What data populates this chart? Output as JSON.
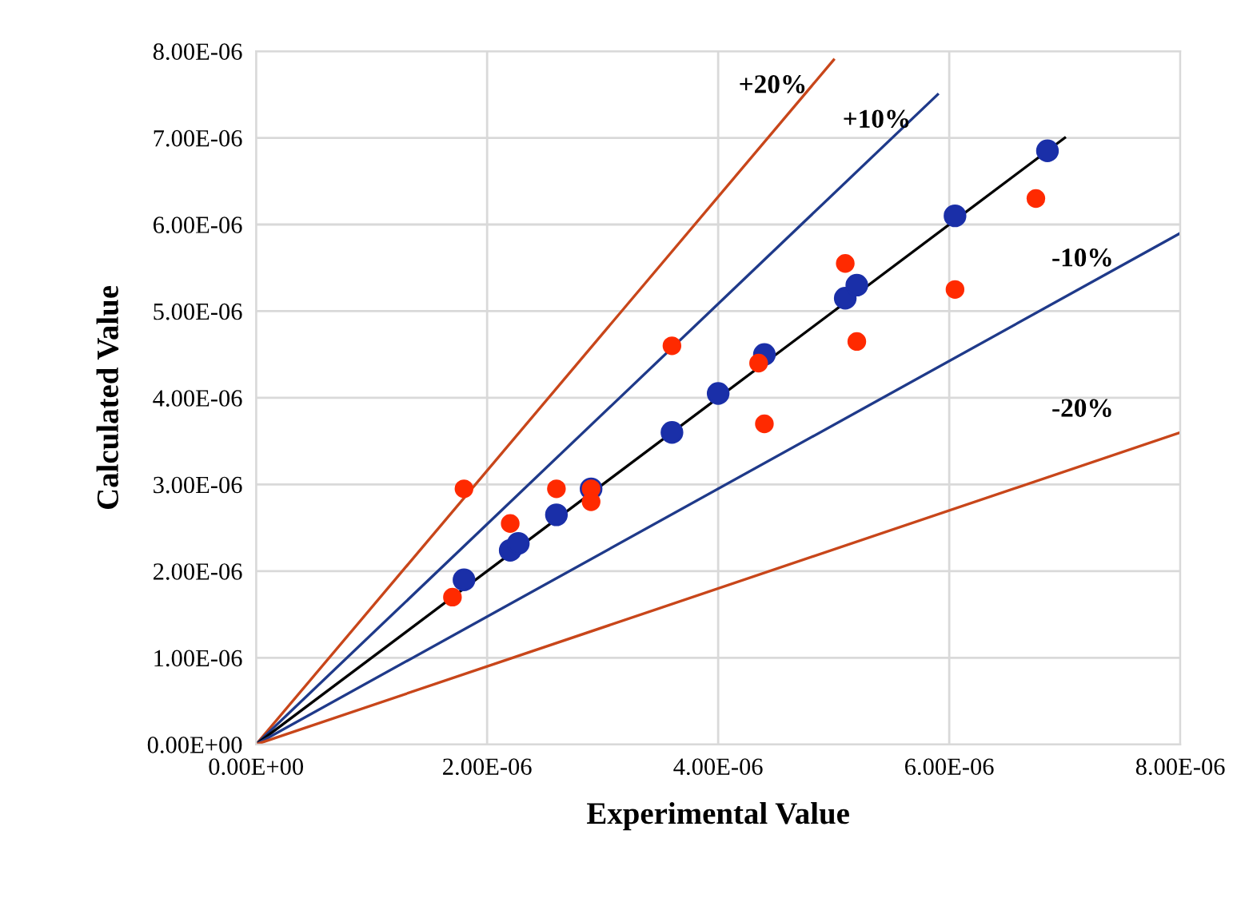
{
  "chart_data": {
    "type": "scatter",
    "xlabel": "Experimental Value",
    "ylabel": "Calculated Value",
    "xlim": [
      0,
      8e-06
    ],
    "ylim": [
      0,
      8e-06
    ],
    "xticks": [
      {
        "value": 0,
        "label": "0.00E+00"
      },
      {
        "value": 2e-06,
        "label": "2.00E-06"
      },
      {
        "value": 4e-06,
        "label": "4.00E-06"
      },
      {
        "value": 6e-06,
        "label": "6.00E-06"
      },
      {
        "value": 8e-06,
        "label": "8.00E-06"
      }
    ],
    "yticks": [
      {
        "value": 0,
        "label": "0.00E+00"
      },
      {
        "value": 1e-06,
        "label": "1.00E-06"
      },
      {
        "value": 2e-06,
        "label": "2.00E-06"
      },
      {
        "value": 3e-06,
        "label": "3.00E-06"
      },
      {
        "value": 4e-06,
        "label": "4.00E-06"
      },
      {
        "value": 5e-06,
        "label": "5.00E-06"
      },
      {
        "value": 6e-06,
        "label": "6.00E-06"
      },
      {
        "value": 7e-06,
        "label": "7.00E-06"
      },
      {
        "value": 8e-06,
        "label": "8.00E-06"
      }
    ],
    "grid": true,
    "marker": "circle",
    "series": [
      {
        "type": "line",
        "name": "+20%",
        "marker": "none",
        "color": "#c8461a",
        "x": [
          0,
          5e-06
        ],
        "values": [
          0,
          7.9e-06
        ]
      },
      {
        "type": "line",
        "name": "+10%",
        "marker": "none",
        "color": "#1f3a8a",
        "x": [
          0,
          5.9e-06
        ],
        "values": [
          0,
          7.5e-06
        ]
      },
      {
        "type": "line",
        "marker": "none",
        "color": "#000000",
        "x": [
          0,
          7e-06
        ],
        "values": [
          0,
          7e-06
        ]
      },
      {
        "type": "line",
        "name": "-10%",
        "marker": "none",
        "color": "#1f3a8a",
        "x": [
          0,
          8e-06
        ],
        "values": [
          0,
          5.9e-06
        ]
      },
      {
        "type": "line",
        "name": "-20%",
        "marker": "none",
        "color": "#c8461a",
        "x": [
          0,
          8e-06
        ],
        "values": [
          0,
          3.6e-06
        ]
      },
      {
        "color": "#ff2a00",
        "x": [
          1.7e-06,
          1.8e-06,
          2.2e-06,
          2.6e-06,
          2.9e-06,
          2.9e-06,
          3.6e-06,
          4.35e-06,
          4.4e-06,
          5.1e-06,
          5.2e-06,
          6.05e-06,
          6.75e-06
        ],
        "values": [
          1.7e-06,
          2.95e-06,
          2.55e-06,
          2.95e-06,
          2.95e-06,
          2.8e-06,
          4.6e-06,
          4.4e-06,
          3.7e-06,
          5.55e-06,
          4.65e-06,
          5.25e-06,
          6.3e-06
        ]
      },
      {
        "color": "#1a2fa8",
        "x": [
          1.8e-06,
          2.2e-06,
          2.27e-06,
          2.6e-06,
          2.9e-06,
          3.6e-06,
          4e-06,
          4.4e-06,
          5.1e-06,
          5.2e-06,
          6.05e-06,
          6.85e-06
        ],
        "values": [
          1.9e-06,
          2.24e-06,
          2.32e-06,
          2.65e-06,
          2.95e-06,
          3.6e-06,
          4.05e-06,
          4.5e-06,
          5.15e-06,
          5.3e-06,
          6.1e-06,
          6.85e-06
        ]
      }
    ]
  }
}
